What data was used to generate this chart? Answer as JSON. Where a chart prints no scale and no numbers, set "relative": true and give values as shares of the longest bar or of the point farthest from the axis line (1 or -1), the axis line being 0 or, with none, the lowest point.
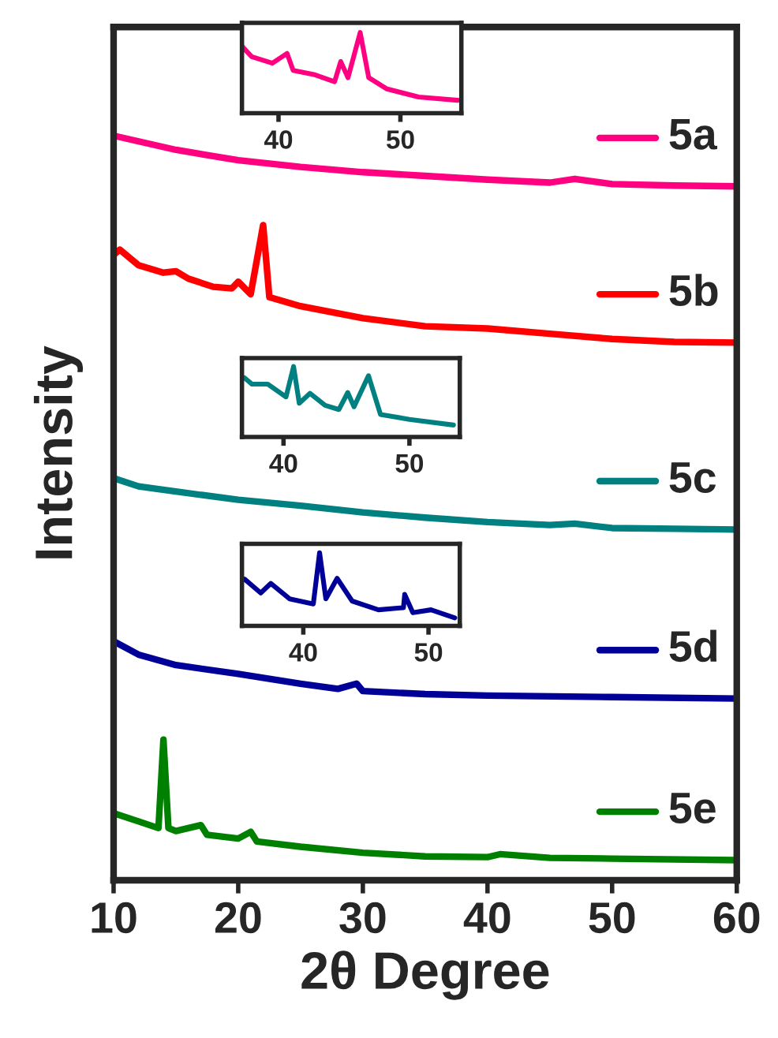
{
  "chart_data": [
    {
      "type": "line",
      "relative": true,
      "xlabel": "2θ Degree",
      "ylabel": "Intensity",
      "xlim": [
        10,
        60
      ],
      "xticks": [
        10,
        20,
        30,
        40,
        50,
        60
      ],
      "tick_labels": "x",
      "legend": "right",
      "series": [
        {
          "name": "5a",
          "color": "#ff0080",
          "x": [
            10,
            15,
            20,
            25,
            30,
            35,
            40,
            45,
            47,
            50,
            55,
            60
          ],
          "values": [
            1.0,
            0.981,
            0.967,
            0.958,
            0.951,
            0.946,
            0.941,
            0.937,
            0.942,
            0.935,
            0.933,
            0.932
          ]
        },
        {
          "name": "5b",
          "color": "#ff0000",
          "x": [
            10,
            10.5,
            12,
            14,
            15,
            16,
            18,
            19.5,
            20,
            21,
            22,
            22.5,
            25,
            30,
            35,
            40,
            45,
            50,
            55,
            60
          ],
          "values": [
            0.84,
            0.847,
            0.826,
            0.816,
            0.818,
            0.808,
            0.797,
            0.795,
            0.804,
            0.787,
            0.88,
            0.783,
            0.771,
            0.755,
            0.744,
            0.741,
            0.734,
            0.727,
            0.723,
            0.722
          ]
        },
        {
          "name": "5c",
          "color": "#008080",
          "x": [
            10,
            12,
            15,
            20,
            25,
            30,
            35,
            40,
            45,
            47,
            50,
            55,
            60
          ],
          "values": [
            0.54,
            0.529,
            0.522,
            0.511,
            0.503,
            0.494,
            0.487,
            0.481,
            0.477,
            0.479,
            0.473,
            0.472,
            0.471
          ]
        },
        {
          "name": "5d",
          "color": "#000099",
          "x": [
            10,
            12,
            15,
            20,
            25,
            28,
            29.5,
            30,
            35,
            40,
            50,
            60
          ],
          "values": [
            0.321,
            0.303,
            0.289,
            0.277,
            0.264,
            0.257,
            0.264,
            0.254,
            0.25,
            0.248,
            0.246,
            0.244
          ]
        },
        {
          "name": "5e",
          "color": "#008000",
          "x": [
            10,
            12,
            13.6,
            14,
            14.4,
            15,
            17,
            17.5,
            20,
            21,
            21.5,
            25,
            30,
            35,
            40,
            41,
            45,
            50,
            60
          ],
          "values": [
            0.09,
            0.079,
            0.07,
            0.189,
            0.07,
            0.066,
            0.074,
            0.061,
            0.056,
            0.065,
            0.052,
            0.045,
            0.037,
            0.032,
            0.031,
            0.035,
            0.03,
            0.029,
            0.027
          ]
        }
      ]
    },
    {
      "type": "line",
      "relative": true,
      "xlim": [
        37,
        55
      ],
      "xticks": [
        40,
        50
      ],
      "tick_labels": "x",
      "series": [
        {
          "color": "#ff0080",
          "x": [
            37.0,
            37.8,
            39.5,
            40.7,
            41.2,
            42.9,
            44.6,
            45.1,
            45.7,
            46.7,
            47.4,
            48.9,
            51.5,
            54.7
          ],
          "values": [
            0.83,
            0.7,
            0.62,
            0.74,
            0.53,
            0.48,
            0.39,
            0.64,
            0.44,
            1.0,
            0.44,
            0.3,
            0.2,
            0.16
          ]
        }
      ]
    },
    {
      "type": "line",
      "relative": true,
      "xlim": [
        36.7,
        54
      ],
      "xticks": [
        40,
        50
      ],
      "tick_labels": "x",
      "series": [
        {
          "color": "#008080",
          "x": [
            36.9,
            37.5,
            38.75,
            40.2,
            40.8,
            41.25,
            42.1,
            43.3,
            44.4,
            45.1,
            45.6,
            46.75,
            47.7,
            50,
            53.5
          ],
          "values": [
            0.84,
            0.75,
            0.75,
            0.57,
            1.0,
            0.48,
            0.62,
            0.45,
            0.39,
            0.63,
            0.43,
            0.87,
            0.32,
            0.25,
            0.17
          ]
        }
      ]
    },
    {
      "type": "line",
      "relative": true,
      "xlim": [
        35.1,
        52.5
      ],
      "xticks": [
        40,
        50
      ],
      "tick_labels": "x",
      "series": [
        {
          "color": "#000099",
          "x": [
            35.3,
            36.6,
            37.4,
            38.9,
            40.8,
            41.3,
            41.8,
            42.7,
            43.9,
            46.0,
            48.0,
            48.1,
            48.75,
            50.2,
            52.1
          ],
          "values": [
            0.64,
            0.45,
            0.58,
            0.37,
            0.3,
            1.0,
            0.37,
            0.65,
            0.34,
            0.22,
            0.25,
            0.43,
            0.18,
            0.22,
            0.11
          ]
        }
      ]
    }
  ]
}
